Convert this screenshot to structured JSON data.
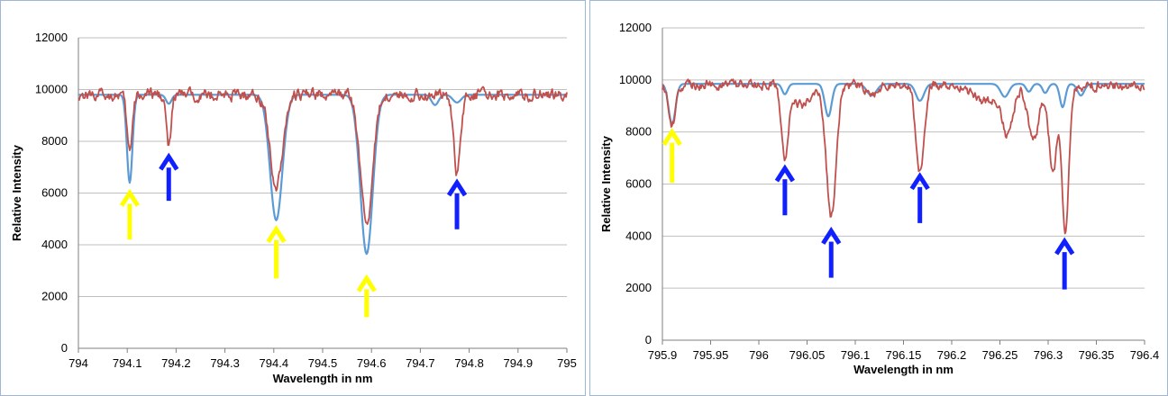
{
  "colors": {
    "model": "#5b9bd5",
    "observed": "#c0504d",
    "yellow_arrow": "#ffff00",
    "blue_arrow": "#1020ff",
    "grid": "#bfbfbf"
  },
  "chart_data": [
    {
      "type": "line",
      "xlabel": "Wavelength in nm",
      "ylabel": "Relative Intensity",
      "xlim": [
        794,
        795
      ],
      "ylim": [
        0,
        12000
      ],
      "xticks": [
        "794",
        "794.1",
        "794.2",
        "794.3",
        "794.4",
        "794.5",
        "794.6",
        "794.7",
        "794.8",
        "794.9",
        "795"
      ],
      "yticks": [
        "0",
        "2000",
        "4000",
        "6000",
        "8000",
        "10000",
        "12000"
      ],
      "grid": "horizontal",
      "series": [
        {
          "color": "#5b9bd5",
          "baseline": 9800,
          "dips": [
            {
              "x": 794.105,
              "min": 6400,
              "width": 0.008
            },
            {
              "x": 794.185,
              "min": 9450,
              "width": 0.008
            },
            {
              "x": 794.405,
              "min": 4950,
              "width": 0.018
            },
            {
              "x": 794.59,
              "min": 3650,
              "width": 0.018
            },
            {
              "x": 794.775,
              "min": 9500,
              "width": 0.012
            },
            {
              "x": 794.73,
              "min": 9400,
              "width": 0.01
            }
          ]
        },
        {
          "color": "#c0504d",
          "baseline": 9800,
          "noise": 250,
          "dips": [
            {
              "x": 794.105,
              "min": 7600,
              "width": 0.008
            },
            {
              "x": 794.185,
              "min": 7750,
              "width": 0.007
            },
            {
              "x": 794.405,
              "min": 6250,
              "width": 0.018
            },
            {
              "x": 794.59,
              "min": 4850,
              "width": 0.018
            },
            {
              "x": 794.775,
              "min": 6800,
              "width": 0.01
            }
          ]
        }
      ],
      "annotations": [
        {
          "type": "arrow",
          "color": "yellow",
          "x": 794.105,
          "y_tip": 6000,
          "y_tail": 4200
        },
        {
          "type": "arrow",
          "color": "blue",
          "x": 794.185,
          "y_tip": 7400,
          "y_tail": 5700
        },
        {
          "type": "arrow",
          "color": "yellow",
          "x": 794.405,
          "y_tip": 4600,
          "y_tail": 2700
        },
        {
          "type": "arrow",
          "color": "yellow",
          "x": 794.59,
          "y_tip": 2700,
          "y_tail": 1200
        },
        {
          "type": "arrow",
          "color": "blue",
          "x": 794.775,
          "y_tip": 6400,
          "y_tail": 4600
        }
      ]
    },
    {
      "type": "line",
      "xlabel": "Wavelength in nm",
      "ylabel": "Relative Intensity",
      "xlim": [
        795.9,
        796.4
      ],
      "ylim": [
        0,
        12000
      ],
      "xticks": [
        "795.9",
        "795.95",
        "796",
        "796.05",
        "796.1",
        "796.15",
        "796.2",
        "796.25",
        "796.3",
        "796.35",
        "796.4"
      ],
      "yticks": [
        "0",
        "2000",
        "4000",
        "6000",
        "8000",
        "10000",
        "12000"
      ],
      "grid": "horizontal",
      "series": [
        {
          "color": "#5b9bd5",
          "baseline": 9850,
          "dips": [
            {
              "x": 795.91,
              "min": 8300,
              "width": 0.005
            },
            {
              "x": 796.027,
              "min": 9450,
              "width": 0.004
            },
            {
              "x": 796.072,
              "min": 8600,
              "width": 0.005
            },
            {
              "x": 796.117,
              "min": 9400,
              "width": 0.007
            },
            {
              "x": 796.167,
              "min": 9200,
              "width": 0.006
            },
            {
              "x": 796.255,
              "min": 9350,
              "width": 0.006
            },
            {
              "x": 796.28,
              "min": 9550,
              "width": 0.004
            },
            {
              "x": 796.297,
              "min": 9500,
              "width": 0.004
            },
            {
              "x": 796.315,
              "min": 8950,
              "width": 0.004
            },
            {
              "x": 796.334,
              "min": 9400,
              "width": 0.005
            }
          ]
        },
        {
          "color": "#c0504d",
          "baseline": 9800,
          "noise": 200,
          "dips": [
            {
              "x": 795.91,
              "min": 8200,
              "width": 0.005
            },
            {
              "x": 796.027,
              "min": 6950,
              "width": 0.005
            },
            {
              "x": 796.045,
              "min": 9000,
              "width": 0.012
            },
            {
              "x": 796.075,
              "min": 4700,
              "width": 0.007
            },
            {
              "x": 796.117,
              "min": 9400,
              "width": 0.007
            },
            {
              "x": 796.167,
              "min": 6550,
              "width": 0.006
            },
            {
              "x": 796.235,
              "min": 9200,
              "width": 0.018
            },
            {
              "x": 796.258,
              "min": 8000,
              "width": 0.008
            },
            {
              "x": 796.285,
              "min": 7700,
              "width": 0.008
            },
            {
              "x": 796.305,
              "min": 6500,
              "width": 0.006
            },
            {
              "x": 796.318,
              "min": 4200,
              "width": 0.005
            }
          ]
        }
      ],
      "annotations": [
        {
          "type": "arrow",
          "color": "yellow",
          "x": 795.91,
          "y_tip": 8000,
          "y_tail": 6050
        },
        {
          "type": "arrow",
          "color": "blue",
          "x": 796.027,
          "y_tip": 6600,
          "y_tail": 4800
        },
        {
          "type": "arrow",
          "color": "blue",
          "x": 796.075,
          "y_tip": 4200,
          "y_tail": 2400
        },
        {
          "type": "arrow",
          "color": "blue",
          "x": 796.167,
          "y_tip": 6300,
          "y_tail": 4500
        },
        {
          "type": "arrow",
          "color": "blue",
          "x": 796.317,
          "y_tip": 3800,
          "y_tail": 1950
        }
      ]
    }
  ]
}
